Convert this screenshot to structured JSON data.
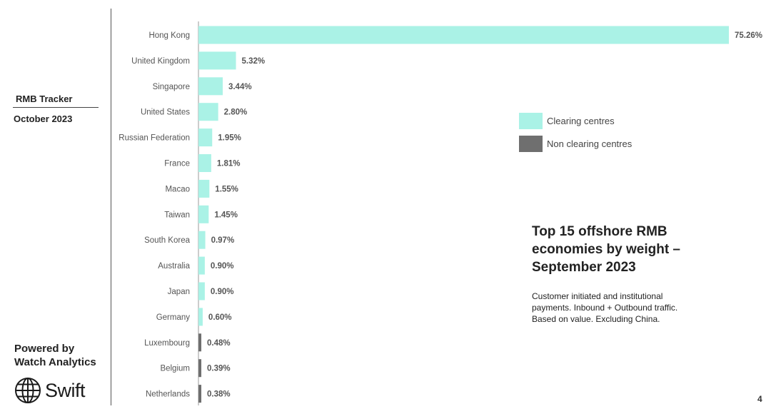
{
  "sidebar": {
    "tracker_title": "RMB Tracker",
    "tracker_date": "October 2023",
    "powered_by": "Powered by\nWatch Analytics",
    "logo_text": "Swift"
  },
  "legend": {
    "items": [
      {
        "label": "Clearing centres",
        "color": "#aaf2e6"
      },
      {
        "label": "Non clearing centres",
        "color": "#6f6f6f"
      }
    ]
  },
  "title_block": {
    "title": "Top 15 offshore RMB\neconomies by weight –\nSeptember 2023",
    "description": "Customer initiated and institutional\npayments. Inbound + Outbound traffic.\nBased on value. Excluding China."
  },
  "page_number": "4",
  "chart_data": {
    "type": "bar",
    "orientation": "horizontal",
    "categories": [
      "Hong Kong",
      "United Kingdom",
      "Singapore",
      "United States",
      "Russian Federation",
      "France",
      "Macao",
      "Taiwan",
      "South Korea",
      "Australia",
      "Japan",
      "Germany",
      "Luxembourg",
      "Belgium",
      "Netherlands"
    ],
    "values": [
      75.26,
      5.32,
      3.44,
      2.8,
      1.95,
      1.81,
      1.55,
      1.45,
      0.97,
      0.9,
      0.9,
      0.6,
      0.48,
      0.39,
      0.38
    ],
    "value_labels": [
      "75.26%",
      "5.32%",
      "3.44%",
      "2.80%",
      "1.95%",
      "1.81%",
      "1.55%",
      "1.45%",
      "0.97%",
      "0.90%",
      "0.90%",
      "0.60%",
      "0.48%",
      "0.39%",
      "0.38%"
    ],
    "clearing_centre": [
      true,
      true,
      true,
      true,
      true,
      true,
      true,
      true,
      true,
      true,
      true,
      true,
      false,
      false,
      false
    ],
    "unit": "%",
    "colors": {
      "clearing": "#aaf2e6",
      "non_clearing": "#6f6f6f"
    }
  }
}
